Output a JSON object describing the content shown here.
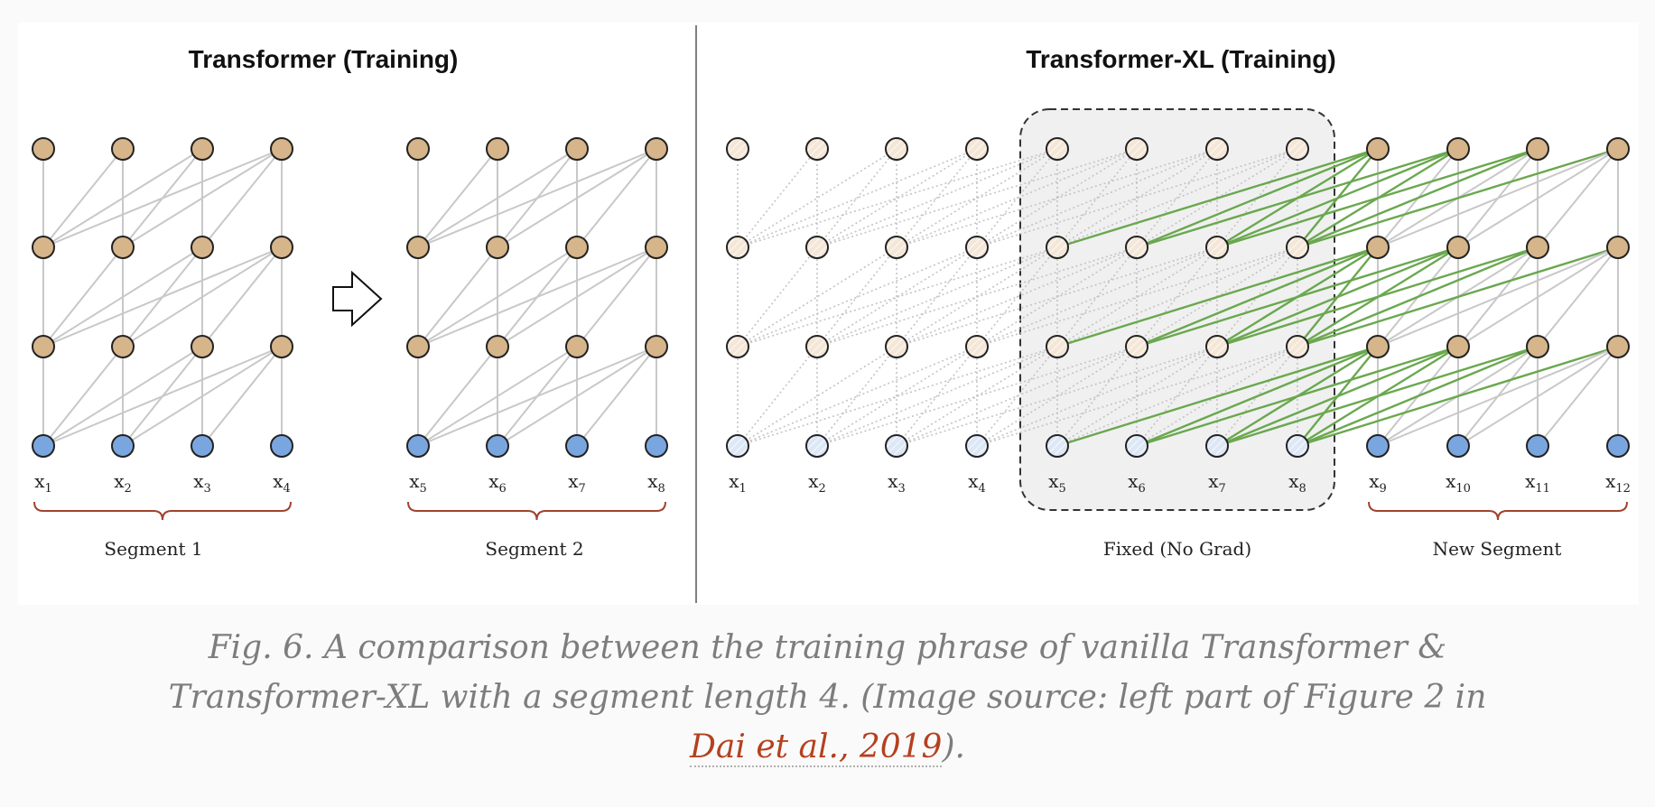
{
  "diagram": {
    "left_title": "Transformer (Training)",
    "right_title": "Transformer-XL (Training)",
    "left_tokens": [
      "x",
      "x",
      "x",
      "x"
    ],
    "left_token_subs": [
      "1",
      "2",
      "3",
      "4"
    ],
    "mid_tokens": [
      "x",
      "x",
      "x",
      "x"
    ],
    "mid_token_subs": [
      "5",
      "6",
      "7",
      "8"
    ],
    "right_tokens": [
      "x",
      "x",
      "x",
      "x",
      "x",
      "x",
      "x",
      "x",
      "x",
      "x",
      "x",
      "x"
    ],
    "right_token_subs": [
      "1",
      "2",
      "3",
      "4",
      "5",
      "6",
      "7",
      "8",
      "9",
      "10",
      "11",
      "12"
    ],
    "segment1_label": "Segment 1",
    "segment2_label": "Segment 2",
    "fixed_label": "Fixed (No Grad)",
    "new_segment_label": "New Segment",
    "colors": {
      "hidden_node": "#d7b58a",
      "input_node": "#7aa6e0",
      "hidden_node_faded": "#f4e7d8",
      "input_node_faded": "#dde8f6",
      "grad_edge": "#6aa84f",
      "edge": "#c8c8c8",
      "brace": "#a0432e",
      "fixed_box": "#f0f0f0"
    }
  },
  "caption": {
    "text": "Fig. 6. A comparison between the training phrase of vanilla Transformer & Transformer-XL with a segment length 4. (Image source: left part of Figure 2 in ",
    "link_text": "Dai et al., 2019",
    "suffix": ")."
  }
}
